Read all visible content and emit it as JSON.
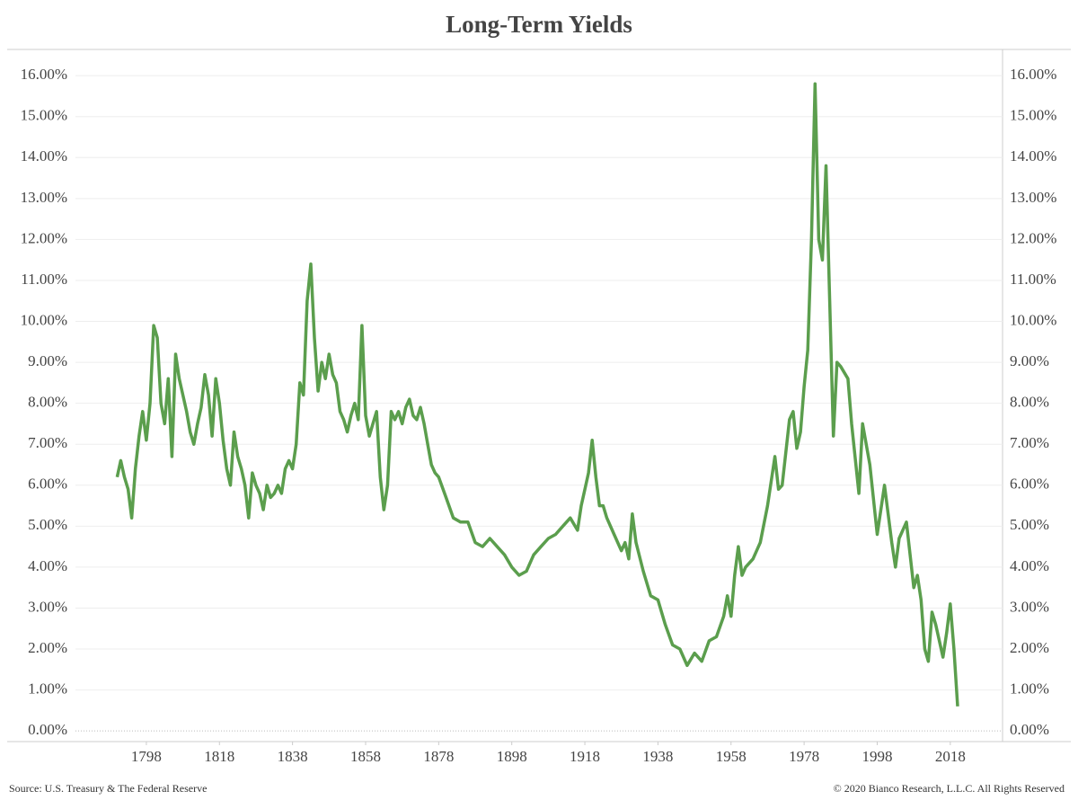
{
  "chart_data": {
    "type": "line",
    "title": "Long-Term Yields",
    "source": "Source: U.S. Treasury & The Federal Reserve",
    "copyright": "© 2020 Bianco Research, L.L.C. All Rights Reserved",
    "color": "#5b9e4d",
    "grid": true,
    "xlim": [
      1778.6,
      2032.3
    ],
    "xticks": [
      1798,
      1818,
      1838,
      1858,
      1878,
      1898,
      1918,
      1938,
      1958,
      1978,
      1998,
      2018
    ],
    "ylim": [
      -0.26,
      16.64
    ],
    "yticks": [
      {
        "value": 0,
        "label": "0.00%"
      },
      {
        "value": 1,
        "label": "1.00%"
      },
      {
        "value": 2,
        "label": "2.00%"
      },
      {
        "value": 3,
        "label": "3.00%"
      },
      {
        "value": 4,
        "label": "4.00%"
      },
      {
        "value": 5,
        "label": "5.00%"
      },
      {
        "value": 6,
        "label": "6.00%"
      },
      {
        "value": 7,
        "label": "7.00%"
      },
      {
        "value": 8,
        "label": "8.00%"
      },
      {
        "value": 9,
        "label": "9.00%"
      },
      {
        "value": 10,
        "label": "10.00%"
      },
      {
        "value": 11,
        "label": "11.00%"
      },
      {
        "value": 12,
        "label": "12.00%"
      },
      {
        "value": 13,
        "label": "13.00%"
      },
      {
        "value": 14,
        "label": "14.00%"
      },
      {
        "value": 15,
        "label": "15.00%"
      },
      {
        "value": 16,
        "label": "16.00%"
      }
    ],
    "x": [
      1790,
      1791,
      1792,
      1793,
      1794,
      1795,
      1796,
      1797,
      1798,
      1799,
      1800,
      1801,
      1802,
      1803,
      1804,
      1805,
      1806,
      1807,
      1808,
      1809,
      1810,
      1811,
      1812,
      1813,
      1814,
      1815,
      1816,
      1817,
      1818,
      1819,
      1820,
      1821,
      1822,
      1823,
      1824,
      1825,
      1826,
      1827,
      1828,
      1829,
      1830,
      1831,
      1832,
      1833,
      1834,
      1835,
      1836,
      1837,
      1838,
      1839,
      1840,
      1841,
      1842,
      1843,
      1844,
      1845,
      1846,
      1847,
      1848,
      1849,
      1850,
      1851,
      1852,
      1853,
      1854,
      1855,
      1856,
      1857,
      1858,
      1859,
      1860,
      1861,
      1862,
      1863,
      1864,
      1865,
      1866,
      1867,
      1868,
      1869,
      1870,
      1871,
      1872,
      1873,
      1874,
      1875,
      1876,
      1877,
      1878,
      1880,
      1882,
      1884,
      1886,
      1888,
      1890,
      1892,
      1894,
      1896,
      1898,
      1900,
      1902,
      1904,
      1906,
      1908,
      1910,
      1912,
      1914,
      1916,
      1917,
      1918,
      1919,
      1920,
      1921,
      1922,
      1923,
      1924,
      1926,
      1928,
      1929,
      1930,
      1931,
      1932,
      1934,
      1936,
      1938,
      1940,
      1942,
      1944,
      1946,
      1948,
      1950,
      1952,
      1954,
      1956,
      1957,
      1958,
      1959,
      1960,
      1961,
      1962,
      1964,
      1966,
      1968,
      1970,
      1971,
      1972,
      1974,
      1975,
      1976,
      1977,
      1978,
      1979,
      1980,
      1981,
      1982,
      1983,
      1984,
      1985,
      1986,
      1987,
      1988,
      1990,
      1991,
      1993,
      1994,
      1996,
      1998,
      2000,
      2002,
      2003,
      2004,
      2006,
      2007,
      2008,
      2009,
      2010,
      2011,
      2012,
      2013,
      2014,
      2016,
      2017,
      2018,
      2019,
      2020
    ],
    "values": [
      6.2,
      6.6,
      6.2,
      5.9,
      5.2,
      6.4,
      7.2,
      7.8,
      7.1,
      8.0,
      9.9,
      9.6,
      8.0,
      7.5,
      8.6,
      6.7,
      9.2,
      8.6,
      8.2,
      7.8,
      7.3,
      7.0,
      7.5,
      7.9,
      8.7,
      8.2,
      7.2,
      8.6,
      8.0,
      7.1,
      6.4,
      6.0,
      7.3,
      6.7,
      6.4,
      6.0,
      5.2,
      6.3,
      6.0,
      5.8,
      5.4,
      6.0,
      5.7,
      5.8,
      6.0,
      5.8,
      6.4,
      6.6,
      6.4,
      7.0,
      8.5,
      8.2,
      10.5,
      11.4,
      9.6,
      8.3,
      9.0,
      8.6,
      9.2,
      8.7,
      8.5,
      7.8,
      7.6,
      7.3,
      7.7,
      8.0,
      7.6,
      9.9,
      7.7,
      7.2,
      7.5,
      7.8,
      6.2,
      5.4,
      6.0,
      7.8,
      7.6,
      7.8,
      7.5,
      7.9,
      8.1,
      7.7,
      7.6,
      7.9,
      7.5,
      7.0,
      6.5,
      6.3,
      6.2,
      5.7,
      5.2,
      5.1,
      5.1,
      4.6,
      4.5,
      4.7,
      4.5,
      4.3,
      4.0,
      3.8,
      3.9,
      4.3,
      4.5,
      4.7,
      4.8,
      5.0,
      5.2,
      4.9,
      5.5,
      5.9,
      6.3,
      7.1,
      6.2,
      5.5,
      5.5,
      5.2,
      4.8,
      4.4,
      4.6,
      4.2,
      5.3,
      4.6,
      3.9,
      3.3,
      3.2,
      2.6,
      2.1,
      2.0,
      1.6,
      1.9,
      1.7,
      2.2,
      2.3,
      2.8,
      3.3,
      2.8,
      3.8,
      4.5,
      3.8,
      4.0,
      4.2,
      4.6,
      5.5,
      6.7,
      5.9,
      6.0,
      7.6,
      7.8,
      6.9,
      7.3,
      8.4,
      9.3,
      12.0,
      15.8,
      12.0,
      11.5,
      13.8,
      10.5,
      7.2,
      9.0,
      8.9,
      8.6,
      7.5,
      5.8,
      7.5,
      6.5,
      4.8,
      6.0,
      4.6,
      4.0,
      4.7,
      5.1,
      4.3,
      3.5,
      3.8,
      3.2,
      2.0,
      1.7,
      2.9,
      2.6,
      1.8,
      2.4,
      3.1,
      2.0,
      0.6
    ]
  }
}
